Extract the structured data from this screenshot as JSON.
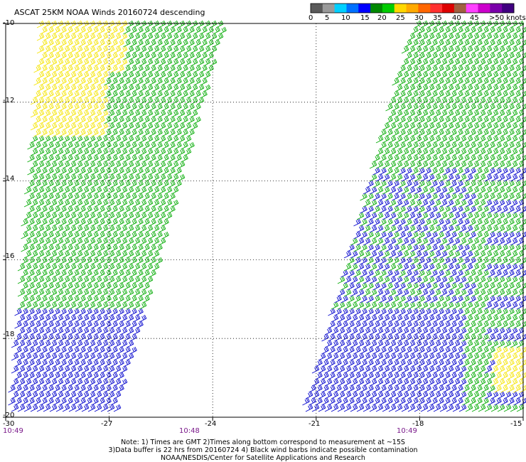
{
  "title": "ASCAT 25KM NOAA Winds 20160724 descending",
  "colorbar": {
    "colors": [
      "#5a5a5a",
      "#9a9a9a",
      "#00d0ff",
      "#0070ff",
      "#0000ff",
      "#008800",
      "#00cc00",
      "#ffd800",
      "#ffaa00",
      "#ff6600",
      "#ff3030",
      "#dd0000",
      "#a06040",
      "#ff40ff",
      "#cc00cc",
      "#7a00aa",
      "#400080"
    ],
    "labels": [
      "0",
      "5",
      "10",
      "15",
      "20",
      "25",
      "30",
      "35",
      "40",
      "45",
      ">50 knots"
    ]
  },
  "axes": {
    "lat_labels": [
      "-10",
      "-12",
      "-14",
      "-16",
      "-18",
      "-20"
    ],
    "lon_labels": [
      "-30",
      "-27",
      "-24",
      "-21",
      "-18",
      "-15"
    ]
  },
  "times": [
    "10:49",
    "10:48",
    "10:49"
  ],
  "notes": [
    "Note: 1) Times are GMT 2)Times along bottom correspond to measurement at ~15S",
    "3)Data buffer is 22 hrs from 20160724 4) Black wind barbs indicate possible contamination",
    "NOAA/NESDIS/Center for Satellite Applications and Research"
  ],
  "wind_colors": {
    "light": "#0000cc",
    "moderate": "#00aa00",
    "strong": "#f5e400"
  },
  "swaths": [
    {
      "name": "west-swath",
      "corners_lonlat": [
        [
          -29.1,
          -10
        ],
        [
          -23.7,
          -10
        ],
        [
          -26.9,
          -20
        ],
        [
          -30,
          -20
        ]
      ]
    },
    {
      "name": "east-swath",
      "corners_lonlat": [
        [
          -18.3,
          -10
        ],
        [
          -15,
          -10
        ],
        [
          -15,
          -20
        ],
        [
          -21.5,
          -20
        ]
      ]
    }
  ]
}
